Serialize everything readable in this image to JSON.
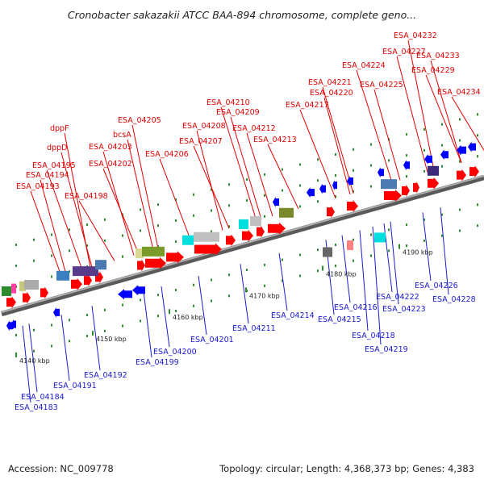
{
  "title": "Cronobacter sakazakii ATCC BAA-894 chromosome, complete geno...",
  "footer": {
    "accession": "Accession: NC_009778",
    "topology": "Topology: circular; Length: 4,368,373 bp; Genes: 4,383"
  },
  "ticks": [
    "4140 kbp",
    "4150 kbp",
    "4160 kbp",
    "4170 kbp",
    "4180 kbp",
    "4190 kbp"
  ],
  "labels_top": [
    "dppF",
    "dppD",
    "ESA_04195",
    "ESA_04194",
    "ESA_04193",
    "ESA_04198",
    "bcsA",
    "ESA_04203",
    "ESA_04202",
    "ESA_04205",
    "ESA_04206",
    "ESA_04207",
    "ESA_04208",
    "ESA_04209",
    "ESA_04210",
    "ESA_04212",
    "ESA_04213",
    "ESA_04217",
    "ESA_04220",
    "ESA_04221",
    "ESA_04224",
    "ESA_04225",
    "ESA_04227",
    "ESA_04229",
    "ESA_04232",
    "ESA_04233",
    "ESA_04234"
  ],
  "labels_bottom": [
    "ESA_04184",
    "ESA_04183",
    "ESA_04191",
    "ESA_04192",
    "ESA_04199",
    "ESA_04200",
    "ESA_04201",
    "ESA_04211",
    "ESA_04214",
    "ESA_04215",
    "ESA_04216",
    "ESA_04218",
    "ESA_04219",
    "ESA_04222",
    "ESA_04223",
    "ESA_04226",
    "ESA_04228"
  ],
  "colors": {
    "forward_gene": "#ff0000",
    "reverse_gene": "#0000ff",
    "top_label": "#e00000",
    "bottom_label": "#1a1ad0",
    "axis": "#808080",
    "tick": "#2e8b2e"
  }
}
